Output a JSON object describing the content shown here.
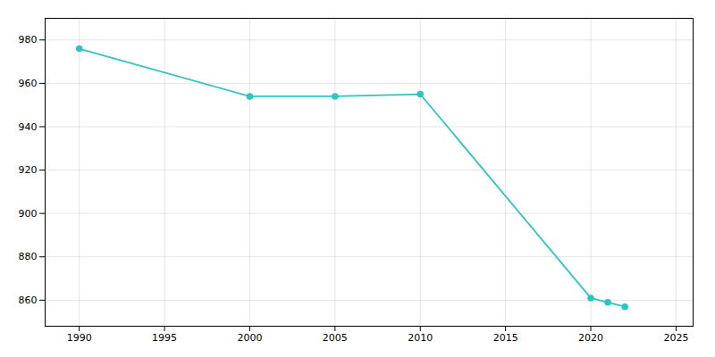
{
  "chart_data": {
    "type": "line",
    "x": [
      1990,
      2000,
      2005,
      2010,
      2020,
      2021,
      2022
    ],
    "values": [
      976,
      954,
      954,
      955,
      861,
      859,
      857
    ],
    "color": "#2ec4c4",
    "marker": "circle",
    "xlim": [
      1988,
      2026
    ],
    "xticks": [
      1990,
      1995,
      2000,
      2005,
      2010,
      2015,
      2020,
      2025
    ],
    "ylim": [
      848,
      990
    ],
    "yticks": [
      860,
      880,
      900,
      920,
      940,
      960,
      980
    ],
    "grid": true
  }
}
